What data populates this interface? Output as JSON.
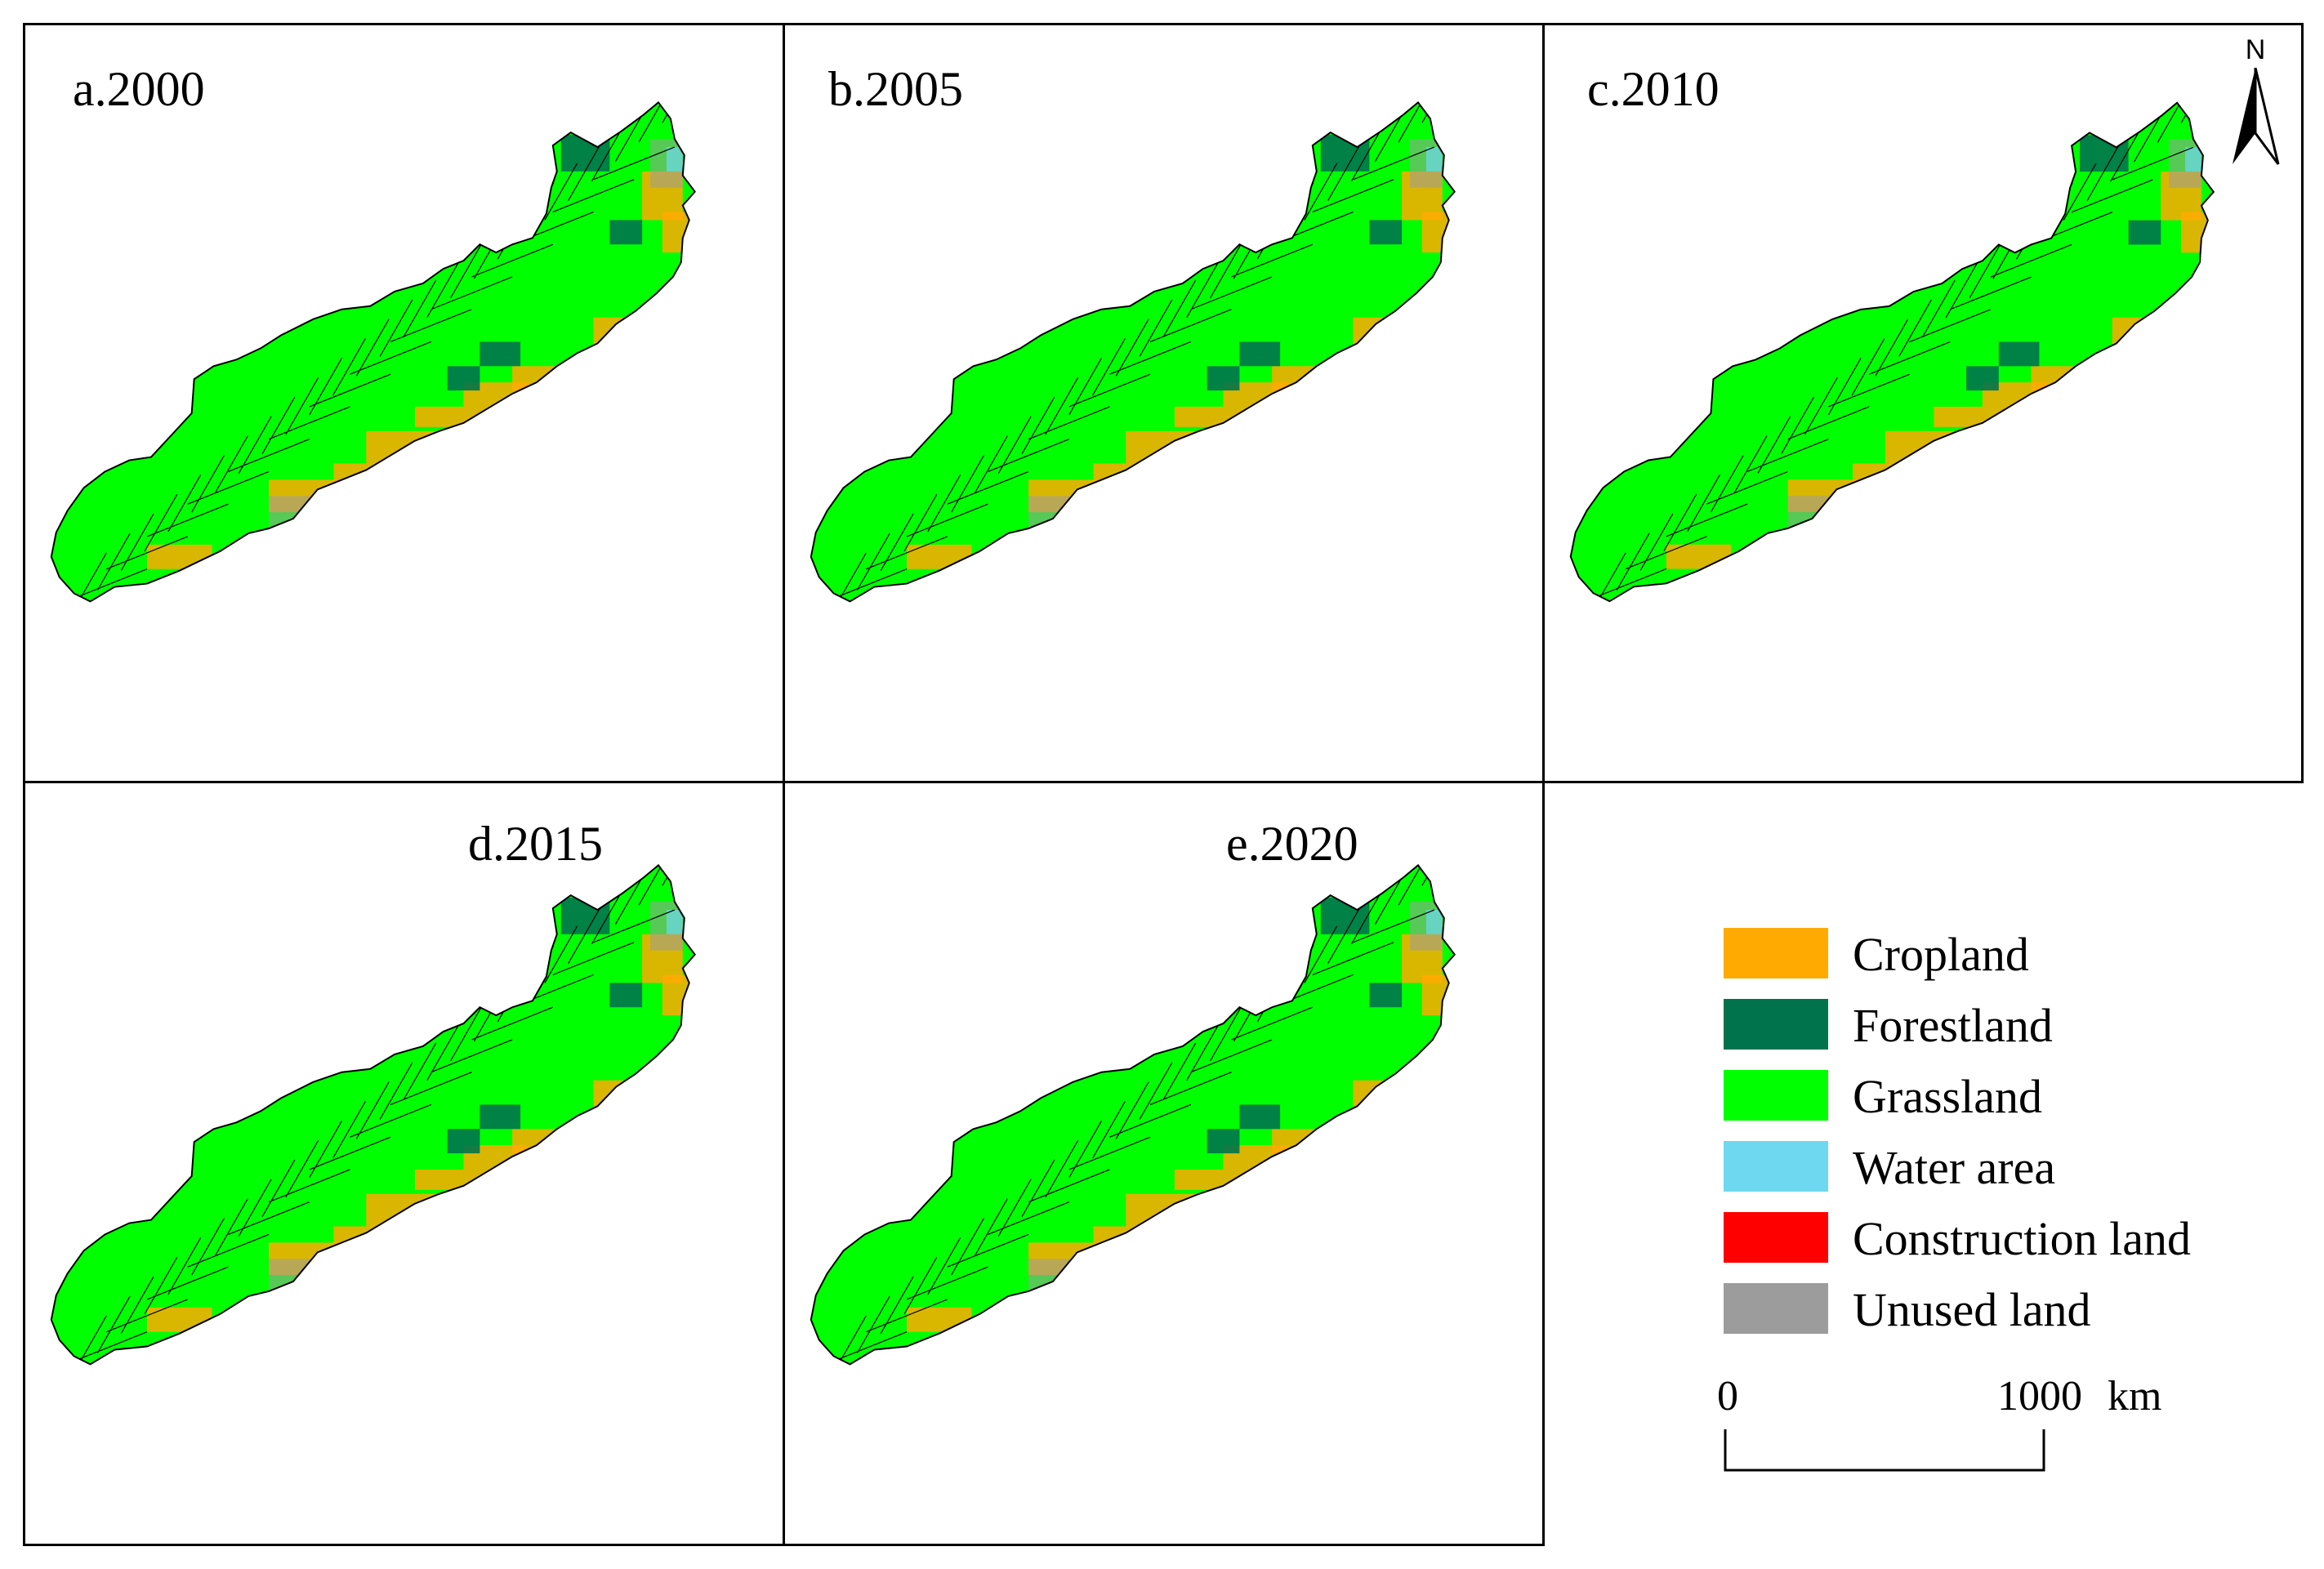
{
  "panels": [
    {
      "id": "a",
      "label": "a.2000"
    },
    {
      "id": "b",
      "label": "b.2005"
    },
    {
      "id": "c",
      "label": "c.2010"
    },
    {
      "id": "d",
      "label": "d.2015"
    },
    {
      "id": "e",
      "label": "e.2020"
    }
  ],
  "north_arrow": {
    "label": "N",
    "icon": "north-arrow-icon"
  },
  "legend": {
    "items": [
      {
        "label": "Cropland",
        "color": "#FFAA00"
      },
      {
        "label": "Forestland",
        "color": "#00734C"
      },
      {
        "label": "Grassland",
        "color": "#00FF00"
      },
      {
        "label": "Water area",
        "color": "#6ED8F0"
      },
      {
        "label": "Construction land",
        "color": "#FF0000"
      },
      {
        "label": "Unused land",
        "color": "#9C9C9C"
      }
    ]
  },
  "scale_bar": {
    "start_label": "0",
    "end_label": "1000",
    "unit": "km"
  },
  "colors": {
    "boundary": "#000000",
    "mixed_fill": "#9ACD32"
  }
}
